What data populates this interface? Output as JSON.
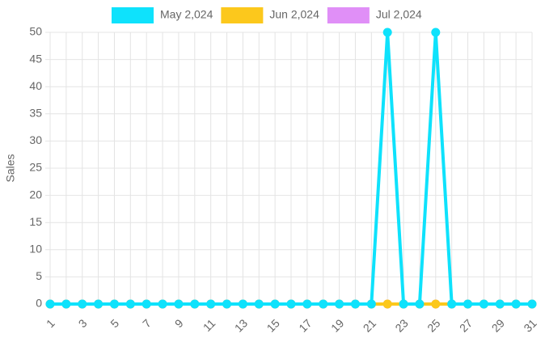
{
  "chart_data": {
    "type": "line",
    "y_label": "Sales",
    "categories": [
      1,
      null,
      3,
      null,
      5,
      null,
      7,
      null,
      9,
      null,
      11,
      null,
      13,
      null,
      15,
      null,
      17,
      null,
      19,
      null,
      21,
      null,
      23,
      null,
      25,
      null,
      27,
      null,
      29,
      null,
      31
    ],
    "series": [
      {
        "name": "May 2,024",
        "color": "#0ee2fc",
        "values": [
          0,
          0,
          0,
          0,
          0,
          0,
          0,
          0,
          0,
          0,
          0,
          0,
          0,
          0,
          0,
          0,
          0,
          0,
          0,
          0,
          0,
          50,
          0,
          0,
          50,
          0,
          0,
          0,
          0,
          0,
          0
        ]
      },
      {
        "name": "Jun 2,024",
        "color": "#fcc81c",
        "values": [
          0,
          0,
          0,
          0,
          0,
          0,
          0,
          0,
          0,
          0,
          0,
          0,
          0,
          0,
          0,
          0,
          0,
          0,
          0,
          0,
          0,
          0,
          0,
          0,
          0,
          0,
          0,
          0,
          0,
          0,
          0
        ]
      },
      {
        "name": "Jul 2,024",
        "color": "#e08ff7",
        "values": [
          0,
          0,
          0,
          0,
          0,
          0,
          0,
          0,
          0,
          0,
          0,
          0,
          0,
          0,
          0,
          0,
          0,
          0,
          0,
          0,
          0,
          0,
          0,
          0,
          0,
          0,
          0,
          0,
          0,
          0,
          0
        ]
      }
    ],
    "ylim": [
      0,
      50
    ],
    "yticks": [
      0,
      5,
      10,
      15,
      20,
      25,
      30,
      35,
      40,
      45,
      50
    ],
    "grid": true,
    "legend": "top"
  }
}
